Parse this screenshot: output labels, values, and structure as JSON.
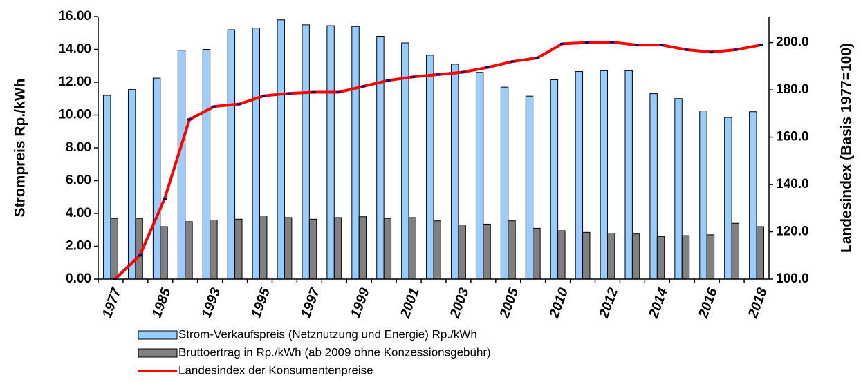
{
  "chart_data": {
    "type": "bar",
    "categories": [
      "1977",
      null,
      "1985",
      null,
      "1993",
      null,
      "1995",
      null,
      "1997",
      null,
      "1999",
      null,
      "2001",
      null,
      "2003",
      null,
      "2005",
      null,
      "2010",
      null,
      "2012",
      null,
      "2014",
      null,
      "2016",
      null,
      "2018"
    ],
    "series": [
      {
        "name": "Strom-Verkaufspreis (Netznutzung und Energie) Rp./kWh",
        "color": "#99ccff",
        "values": [
          11.2,
          11.55,
          12.25,
          13.95,
          14.0,
          15.2,
          15.3,
          15.8,
          15.5,
          15.45,
          15.4,
          14.8,
          14.4,
          13.65,
          13.1,
          12.6,
          11.7,
          11.15,
          12.15,
          12.65,
          12.7,
          12.7,
          11.3,
          11.0,
          10.25,
          9.85,
          10.2
        ]
      },
      {
        "name": "Bruttoertrag in Rp./kWh (ab 2009 ohne Konzessionsgebühr)",
        "color": "#808080",
        "values": [
          3.7,
          3.7,
          3.2,
          3.5,
          3.6,
          3.65,
          3.85,
          3.75,
          3.65,
          3.75,
          3.8,
          3.7,
          3.75,
          3.55,
          3.3,
          3.35,
          3.55,
          3.1,
          2.95,
          2.85,
          2.8,
          2.75,
          2.6,
          2.65,
          2.7,
          3.4,
          3.2
        ]
      },
      {
        "name": "Landesindex der Konsumentenpreise",
        "color": "#ff0000",
        "type": "line",
        "axis": "y2",
        "values": [
          100,
          110,
          134,
          167.5,
          173,
          174,
          177.5,
          178.5,
          179,
          179,
          181.5,
          184,
          185.5,
          186.5,
          187.5,
          189.5,
          192,
          193.5,
          199.5,
          200,
          200.2,
          199,
          199,
          197,
          196,
          197,
          199
        ]
      }
    ],
    "y_label": "Strompreis Rp./kWh",
    "y2_label": "Landesindex (Basis 1977=100)",
    "ylim": [
      0,
      16
    ],
    "yticks": [
      {
        "value": 0,
        "label": "0.00"
      },
      {
        "value": 2,
        "label": "2.00"
      },
      {
        "value": 4,
        "label": "4.00"
      },
      {
        "value": 6,
        "label": "6.00"
      },
      {
        "value": 8,
        "label": "8.00"
      },
      {
        "value": 10,
        "label": "10.00"
      },
      {
        "value": 12,
        "label": "12.00"
      },
      {
        "value": 14,
        "label": "14.00"
      },
      {
        "value": 16,
        "label": "16.00"
      }
    ],
    "y2lim": [
      100,
      211
    ],
    "y2ticks": [
      {
        "value": 100,
        "label": "100.0"
      },
      {
        "value": 120,
        "label": "120.0"
      },
      {
        "value": 140,
        "label": "140.0"
      },
      {
        "value": 160,
        "label": "160.0"
      },
      {
        "value": 180,
        "label": "180.0"
      },
      {
        "value": 200,
        "label": "200.0"
      }
    ]
  }
}
